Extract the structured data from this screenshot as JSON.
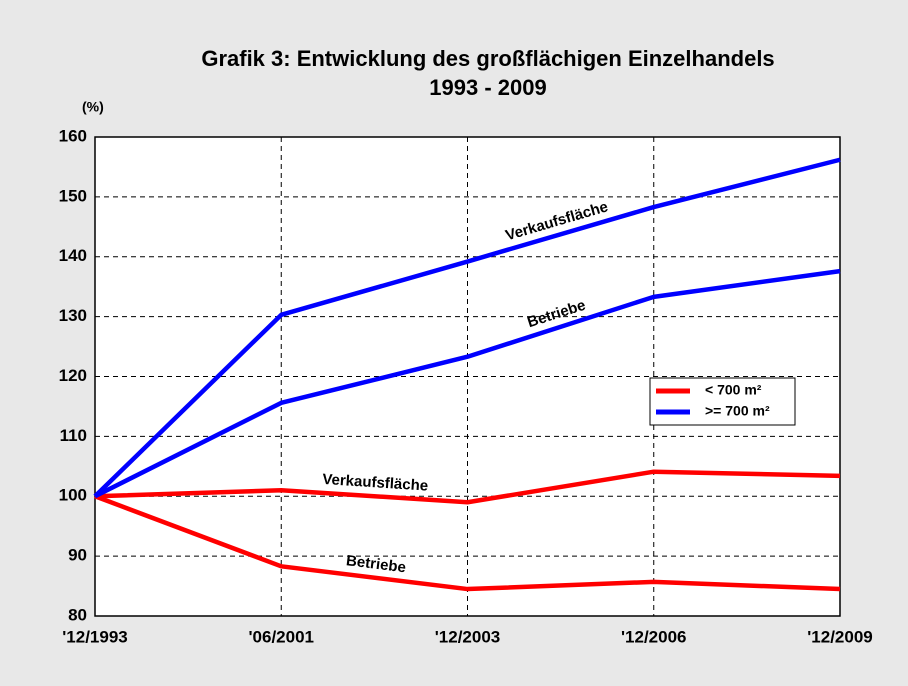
{
  "chart_data": {
    "type": "line",
    "title": [
      "Grafik 3: Entwicklung des großflächigen Einzelhandels",
      "1993 - 2009"
    ],
    "y_label": "(%)",
    "categories": [
      "'12/1993",
      "'06/2001",
      "'12/2003",
      "'12/2006",
      "'12/2009"
    ],
    "series": [
      {
        "name": "< 700 m²",
        "color": "#ff0000",
        "lines": [
          {
            "label": "Verkaufsfläche",
            "values": [
              100,
              101,
              99,
              104.1,
              103.4
            ]
          },
          {
            "label": "Betriebe",
            "values": [
              100,
              88.3,
              84.5,
              85.7,
              84.5
            ]
          }
        ]
      },
      {
        "name": ">= 700 m²",
        "color": "#0000ff",
        "lines": [
          {
            "label": "Verkaufsfläche",
            "values": [
              100,
              130.3,
              139.2,
              148.3,
              156.2
            ]
          },
          {
            "label": "Betriebe",
            "values": [
              100,
              115.6,
              123.3,
              133.3,
              137.6
            ]
          }
        ]
      }
    ],
    "ylim": [
      80,
      160
    ],
    "yticks": [
      80,
      90,
      100,
      110,
      120,
      130,
      140,
      150,
      160
    ],
    "grid": true,
    "legend": "right"
  }
}
